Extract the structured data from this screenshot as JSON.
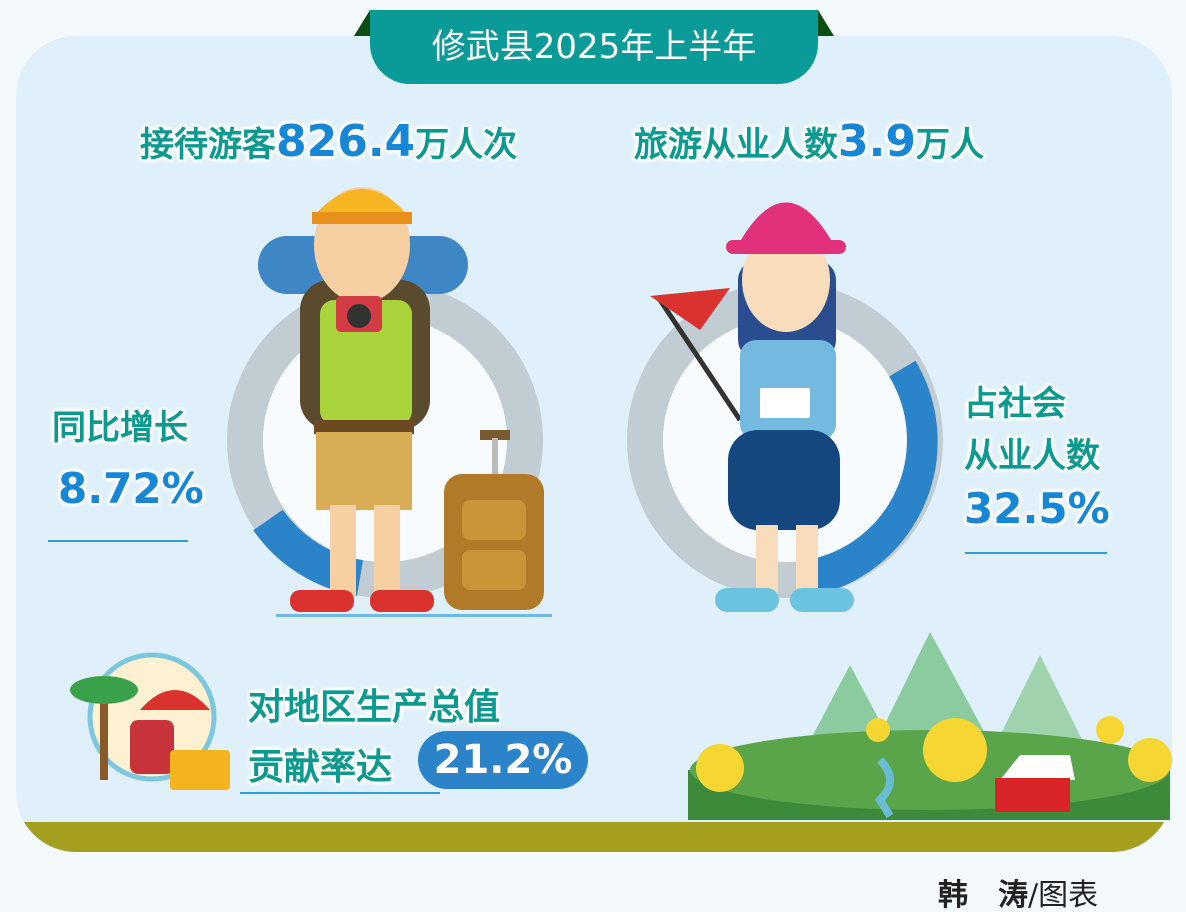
{
  "banner": {
    "title": "修武县2025年上半年"
  },
  "visitors": {
    "label": "接待游客",
    "value": "826.4",
    "unit": "万人次"
  },
  "employees": {
    "label": "旅游从业人数",
    "value": "3.9",
    "unit": "万人"
  },
  "growth": {
    "label": "同比增长",
    "value": "8.72%",
    "fraction": 0.0872
  },
  "share": {
    "label_line1": "占社会",
    "label_line2": "从业人数",
    "value": "32.5%",
    "fraction": 0.325
  },
  "gdp": {
    "label_line1": "对地区生产总值",
    "label_line2": "贡献率达",
    "value": "21.2%"
  },
  "credit": {
    "author": "韩　涛",
    "suffix": "/图表"
  },
  "colors": {
    "teal": "#0a9b98",
    "blue": "#2b84c9",
    "ring_gray": "#c2ccd3",
    "ground": "#a49f1e",
    "background": "#dff0fa"
  },
  "icons": [
    "backpacker-illustration",
    "hiker-with-flag-illustration",
    "beach-vacation-icon",
    "forest-village-illustration"
  ]
}
